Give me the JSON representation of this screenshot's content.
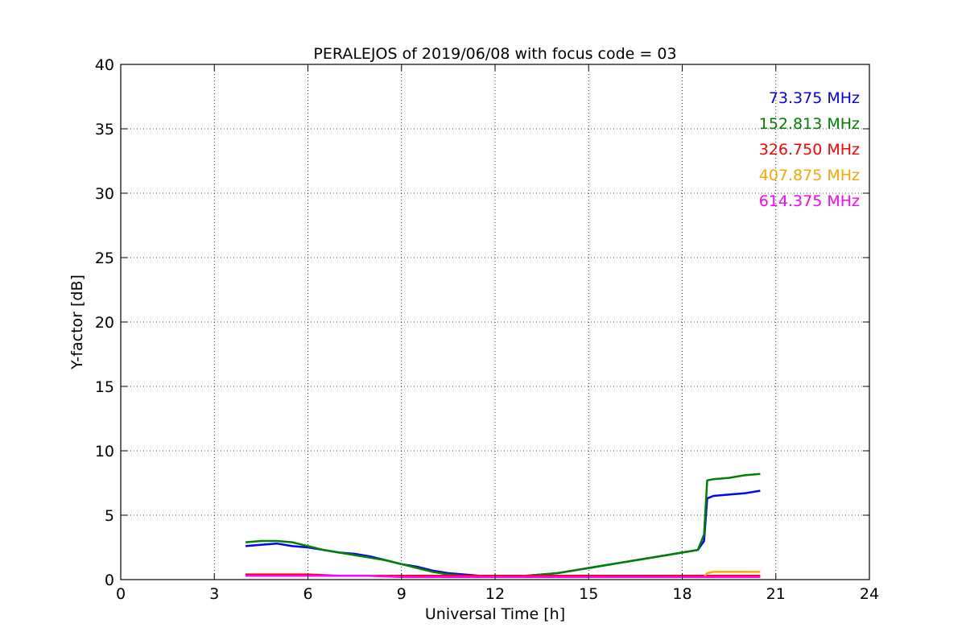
{
  "chart_data": {
    "type": "line",
    "title": "PERALEJOS of 2019/06/08 with focus code = 03",
    "xlabel": "Universal Time [h]",
    "ylabel": "Y-factor [dB]",
    "xlim": [
      0,
      24
    ],
    "ylim": [
      0,
      40
    ],
    "xticks": [
      0,
      3,
      6,
      9,
      12,
      15,
      18,
      21,
      24
    ],
    "yticks": [
      0,
      5,
      10,
      15,
      20,
      25,
      30,
      35,
      40
    ],
    "xtick_labels": [
      "0",
      "3",
      "6",
      "9",
      "12",
      "15",
      "18",
      "21",
      "24"
    ],
    "ytick_labels": [
      "0",
      "5",
      "10",
      "15",
      "20",
      "25",
      "30",
      "35",
      "40"
    ],
    "grid": true,
    "legend_position": "top-right",
    "series": [
      {
        "name": "73.375 MHz",
        "color": "#0000ff",
        "x": [
          4.0,
          4.5,
          5.0,
          5.5,
          6.0,
          6.5,
          7.0,
          7.5,
          8.0,
          8.5,
          9.0,
          9.5,
          10.0,
          10.5,
          11.0,
          11.5,
          12.0,
          12.5,
          13.0,
          13.5,
          14.0,
          14.5,
          15.0,
          15.5,
          16.0,
          16.5,
          17.0,
          17.5,
          18.0,
          18.5,
          18.7,
          18.8,
          19.0,
          19.5,
          20.0,
          20.5
        ],
        "values": [
          2.6,
          2.7,
          2.8,
          2.6,
          2.5,
          2.3,
          2.1,
          2.0,
          1.8,
          1.5,
          1.2,
          1.0,
          0.7,
          0.5,
          0.4,
          0.3,
          0.3,
          0.3,
          0.3,
          0.4,
          0.5,
          0.7,
          0.9,
          1.1,
          1.3,
          1.5,
          1.7,
          1.9,
          2.1,
          2.3,
          3.0,
          6.3,
          6.5,
          6.6,
          6.7,
          6.9
        ]
      },
      {
        "name": "152.813 MHz",
        "color": "#008000",
        "x": [
          4.0,
          4.5,
          5.0,
          5.5,
          6.0,
          6.5,
          7.0,
          7.5,
          8.0,
          8.5,
          9.0,
          9.5,
          10.0,
          10.5,
          11.0,
          11.5,
          12.0,
          12.5,
          13.0,
          13.5,
          14.0,
          14.5,
          15.0,
          15.5,
          16.0,
          16.5,
          17.0,
          17.5,
          18.0,
          18.5,
          18.7,
          18.8,
          19.0,
          19.5,
          20.0,
          20.5
        ],
        "values": [
          2.9,
          3.0,
          3.0,
          2.9,
          2.6,
          2.3,
          2.1,
          1.9,
          1.7,
          1.5,
          1.2,
          0.9,
          0.6,
          0.4,
          0.3,
          0.3,
          0.3,
          0.3,
          0.3,
          0.4,
          0.5,
          0.7,
          0.9,
          1.1,
          1.3,
          1.5,
          1.7,
          1.9,
          2.1,
          2.3,
          3.5,
          7.7,
          7.8,
          7.9,
          8.1,
          8.2
        ]
      },
      {
        "name": "326.750 MHz",
        "color": "#ff0000",
        "x": [
          4.0,
          5.0,
          6.0,
          7.0,
          8.0,
          9.0,
          10.0,
          11.0,
          12.0,
          13.0,
          14.0,
          15.0,
          16.0,
          17.0,
          18.0,
          18.7,
          19.0,
          20.0,
          20.5
        ],
        "values": [
          0.4,
          0.4,
          0.4,
          0.3,
          0.3,
          0.3,
          0.3,
          0.3,
          0.3,
          0.3,
          0.3,
          0.3,
          0.3,
          0.3,
          0.3,
          0.3,
          0.3,
          0.3,
          0.3
        ]
      },
      {
        "name": "407.875 MHz",
        "color": "#ffa500",
        "x": [
          4.0,
          5.0,
          6.0,
          7.0,
          8.0,
          9.0,
          10.0,
          11.0,
          12.0,
          13.0,
          14.0,
          15.0,
          16.0,
          17.0,
          18.0,
          18.7,
          18.8,
          19.0,
          20.0,
          20.5
        ],
        "values": [
          0.3,
          0.3,
          0.3,
          0.3,
          0.3,
          0.2,
          0.2,
          0.2,
          0.2,
          0.2,
          0.2,
          0.2,
          0.2,
          0.2,
          0.2,
          0.2,
          0.5,
          0.6,
          0.6,
          0.6
        ]
      },
      {
        "name": "614.375 MHz",
        "color": "#ff00ff",
        "x": [
          4.0,
          5.0,
          6.0,
          7.0,
          8.0,
          9.0,
          10.0,
          11.0,
          12.0,
          13.0,
          14.0,
          15.0,
          16.0,
          17.0,
          18.0,
          19.0,
          20.0,
          20.5
        ],
        "values": [
          0.3,
          0.3,
          0.3,
          0.3,
          0.3,
          0.2,
          0.2,
          0.2,
          0.2,
          0.2,
          0.2,
          0.2,
          0.2,
          0.2,
          0.2,
          0.2,
          0.2,
          0.2
        ]
      }
    ]
  }
}
